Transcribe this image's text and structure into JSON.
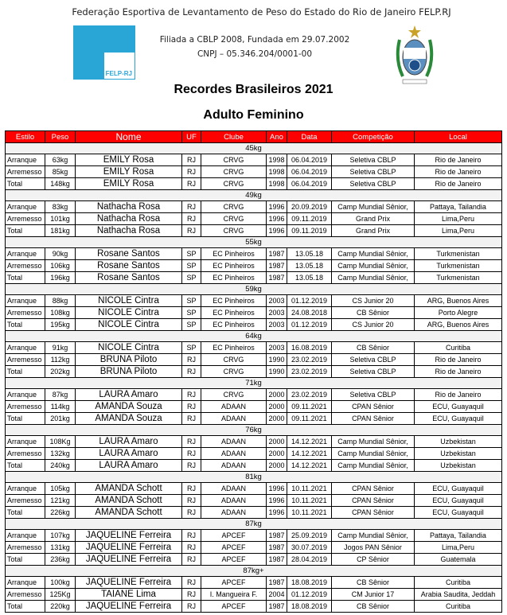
{
  "header": {
    "org": "Federação Esportiva de Levantamento de Peso do Estado do Rio de Janeiro FELP.RJ",
    "logo_text": "FELP-RJ",
    "affiliation": "Filiada a CBLP 2008, Fundada em 29.07.2002",
    "cnpj": "CNPJ – 05.346.204/0001-00"
  },
  "title": "Recordes Brasileiros 2021",
  "subtitle": "Adulto Feminino",
  "columns": [
    "Estilo",
    "Peso",
    "Nome",
    "UF",
    "Clube",
    "Ano",
    "Data",
    "Competição",
    "Local"
  ],
  "categories": [
    {
      "name": "45kg",
      "rows": [
        [
          "Arranque",
          "63kg",
          "EMILY Rosa",
          "RJ",
          "CRVG",
          "1998",
          "06.04.2019",
          "Seletiva CBLP",
          "Rio de Janeiro"
        ],
        [
          "Arremesso",
          "85kg",
          "EMILY Rosa",
          "RJ",
          "CRVG",
          "1998",
          "06.04.2019",
          "Seletiva CBLP",
          "Rio de Janeiro"
        ],
        [
          "Total",
          "148kg",
          "EMILY Rosa",
          "RJ",
          "CRVG",
          "1998",
          "06.04.2019",
          "Seletiva CBLP",
          "Rio de Janeiro"
        ]
      ]
    },
    {
      "name": "49kg",
      "rows": [
        [
          "Arranque",
          "83kg",
          "Nathacha Rosa",
          "RJ",
          "CRVG",
          "1996",
          "20.09.2019",
          "Camp Mundial Sênior,",
          "Pattaya, Tailandia"
        ],
        [
          "Arremesso",
          "101kg",
          "Nathacha Rosa",
          "RJ",
          "CRVG",
          "1996",
          "09.11.2019",
          "Grand Prix",
          "Lima,Peru"
        ],
        [
          "Total",
          "181kg",
          "Nathacha Rosa",
          "RJ",
          "CRVG",
          "1996",
          "09.11.2019",
          "Grand Prix",
          "Lima,Peru"
        ]
      ]
    },
    {
      "name": "55kg",
      "rows": [
        [
          "Arranque",
          "90kg",
          "Rosane Santos",
          "SP",
          "EC Pinheiros",
          "1987",
          "13.05.18",
          "Camp Mundial Sênior,",
          "Turkmenistan"
        ],
        [
          "Arremesso",
          "106kg",
          "Rosane Santos",
          "SP",
          "EC Pinheiros",
          "1987",
          "13.05.18",
          "Camp Mundial Sênior,",
          "Turkmenistan"
        ],
        [
          "Total",
          "196kg",
          "Rosane Santos",
          "SP",
          "EC Pinheiros",
          "1987",
          "13.05.18",
          "Camp Mundial Sênior,",
          "Turkmenistan"
        ]
      ]
    },
    {
      "name": "59kg",
      "rows": [
        [
          "Arranque",
          "88kg",
          "NICOLE Cintra",
          "SP",
          "EC Pinheiros",
          "2003",
          "01.12.2019",
          "CS Junior 20",
          "ARG, Buenos Aires"
        ],
        [
          "Arremesso",
          "108kg",
          "NICOLE Cintra",
          "SP",
          "EC Pinheiros",
          "2003",
          "24.08.2018",
          "CB Sênior",
          "Porto Alegre"
        ],
        [
          "Total",
          "195kg",
          "NICOLE Cintra",
          "SP",
          "EC Pinheiros",
          "2003",
          "01.12.2019",
          "CS Junior 20",
          "ARG, Buenos Aires"
        ]
      ]
    },
    {
      "name": "64kg",
      "rows": [
        [
          "Arranque",
          "91kg",
          "NICOLE Cintra",
          "SP",
          "EC Pinheiros",
          "2003",
          "16.08.2019",
          "CB Sênior",
          "Curitiba"
        ],
        [
          "Arremesso",
          "112kg",
          "BRUNA Piloto",
          "RJ",
          "CRVG",
          "1990",
          "23.02.2019",
          "Seletiva CBLP",
          "Rio de Janeiro"
        ],
        [
          "Total",
          "202kg",
          "BRUNA Piloto",
          "RJ",
          "CRVG",
          "1990",
          "23.02.2019",
          "Seletiva CBLP",
          "Rio de Janeiro"
        ]
      ]
    },
    {
      "name": "71kg",
      "rows": [
        [
          "Arranque",
          "87kg",
          "LAURA Amaro",
          "RJ",
          "CRVG",
          "2000",
          "23.02.2019",
          "Seletiva CBLP",
          "Rio de Janeiro"
        ],
        [
          "Arremesso",
          "114kg",
          "AMANDA Souza",
          "RJ",
          "ADAAN",
          "2000",
          "09.11.2021",
          "CPAN Sênior",
          "ECU, Guayaquil"
        ],
        [
          "Total",
          "201kg",
          "AMANDA Souza",
          "RJ",
          "ADAAN",
          "2000",
          "09.11.2021",
          "CPAN Sênior",
          "ECU, Guayaquil"
        ]
      ]
    },
    {
      "name": "76kg",
      "rows": [
        [
          "Arranque",
          "108Kg",
          "LAURA Amaro",
          "RJ",
          "ADAAN",
          "2000",
          "14.12.2021",
          "Camp Mundial Sênior,",
          "Uzbekistan"
        ],
        [
          "Arremesso",
          "132kg",
          "LAURA Amaro",
          "RJ",
          "ADAAN",
          "2000",
          "14.12.2021",
          "Camp Mundial Sênior,",
          "Uzbekistan"
        ],
        [
          "Total",
          "240kg",
          "LAURA Amaro",
          "RJ",
          "ADAAN",
          "2000",
          "14.12.2021",
          "Camp Mundial Sênior,",
          "Uzbekistan"
        ]
      ]
    },
    {
      "name": "81kg",
      "rows": [
        [
          "Arranque",
          "105kg",
          "AMANDA Schott",
          "RJ",
          "ADAAN",
          "1996",
          "10.11.2021",
          "CPAN Sênior",
          "ECU, Guayaquil"
        ],
        [
          "Arremesso",
          "121kg",
          "AMANDA Schott",
          "RJ",
          "ADAAN",
          "1996",
          "10.11.2021",
          "CPAN Sênior",
          "ECU, Guayaquil"
        ],
        [
          "Total",
          "226kg",
          "AMANDA Schott",
          "RJ",
          "ADAAN",
          "1996",
          "10.11.2021",
          "CPAN Sênior",
          "ECU, Guayaquil"
        ]
      ]
    },
    {
      "name": "87kg",
      "rows": [
        [
          "Arranque",
          "107kg",
          "JAQUELINE Ferreira",
          "RJ",
          "APCEF",
          "1987",
          "25.09.2019",
          "Camp Mundial Sênior,",
          "Pattaya, Tailandia"
        ],
        [
          "Arremesso",
          "131kg",
          "JAQUELINE Ferreira",
          "RJ",
          "APCEF",
          "1987",
          "30.07.2019",
          "Jogos PAN Sênior",
          "Lima,Peru"
        ],
        [
          "Total",
          "236kg",
          "JAQUELINE Ferreira",
          "RJ",
          "APCEF",
          "1987",
          "28.04.2019",
          "CP Sênior",
          "Guatemala"
        ]
      ]
    },
    {
      "name": "87kg+",
      "rows": [
        [
          "Arranque",
          "100kg",
          "JAQUELINE Ferreira",
          "RJ",
          "APCEF",
          "1987",
          "18.08.2019",
          "CB Sênior",
          "Curitiba"
        ],
        [
          "Arremesso",
          "125Kg",
          "TAIANE Lima",
          "RJ",
          "I. Mangueira F.",
          "2004",
          "01.12.2019",
          "CM Junior 17",
          "Arabia Saudita, Jeddah"
        ],
        [
          "Total",
          "220kg",
          "JAQUELINE Ferreira",
          "RJ",
          "APCEF",
          "1987",
          "18.08.2019",
          "CB Sênior",
          "Curitiba"
        ]
      ]
    }
  ]
}
